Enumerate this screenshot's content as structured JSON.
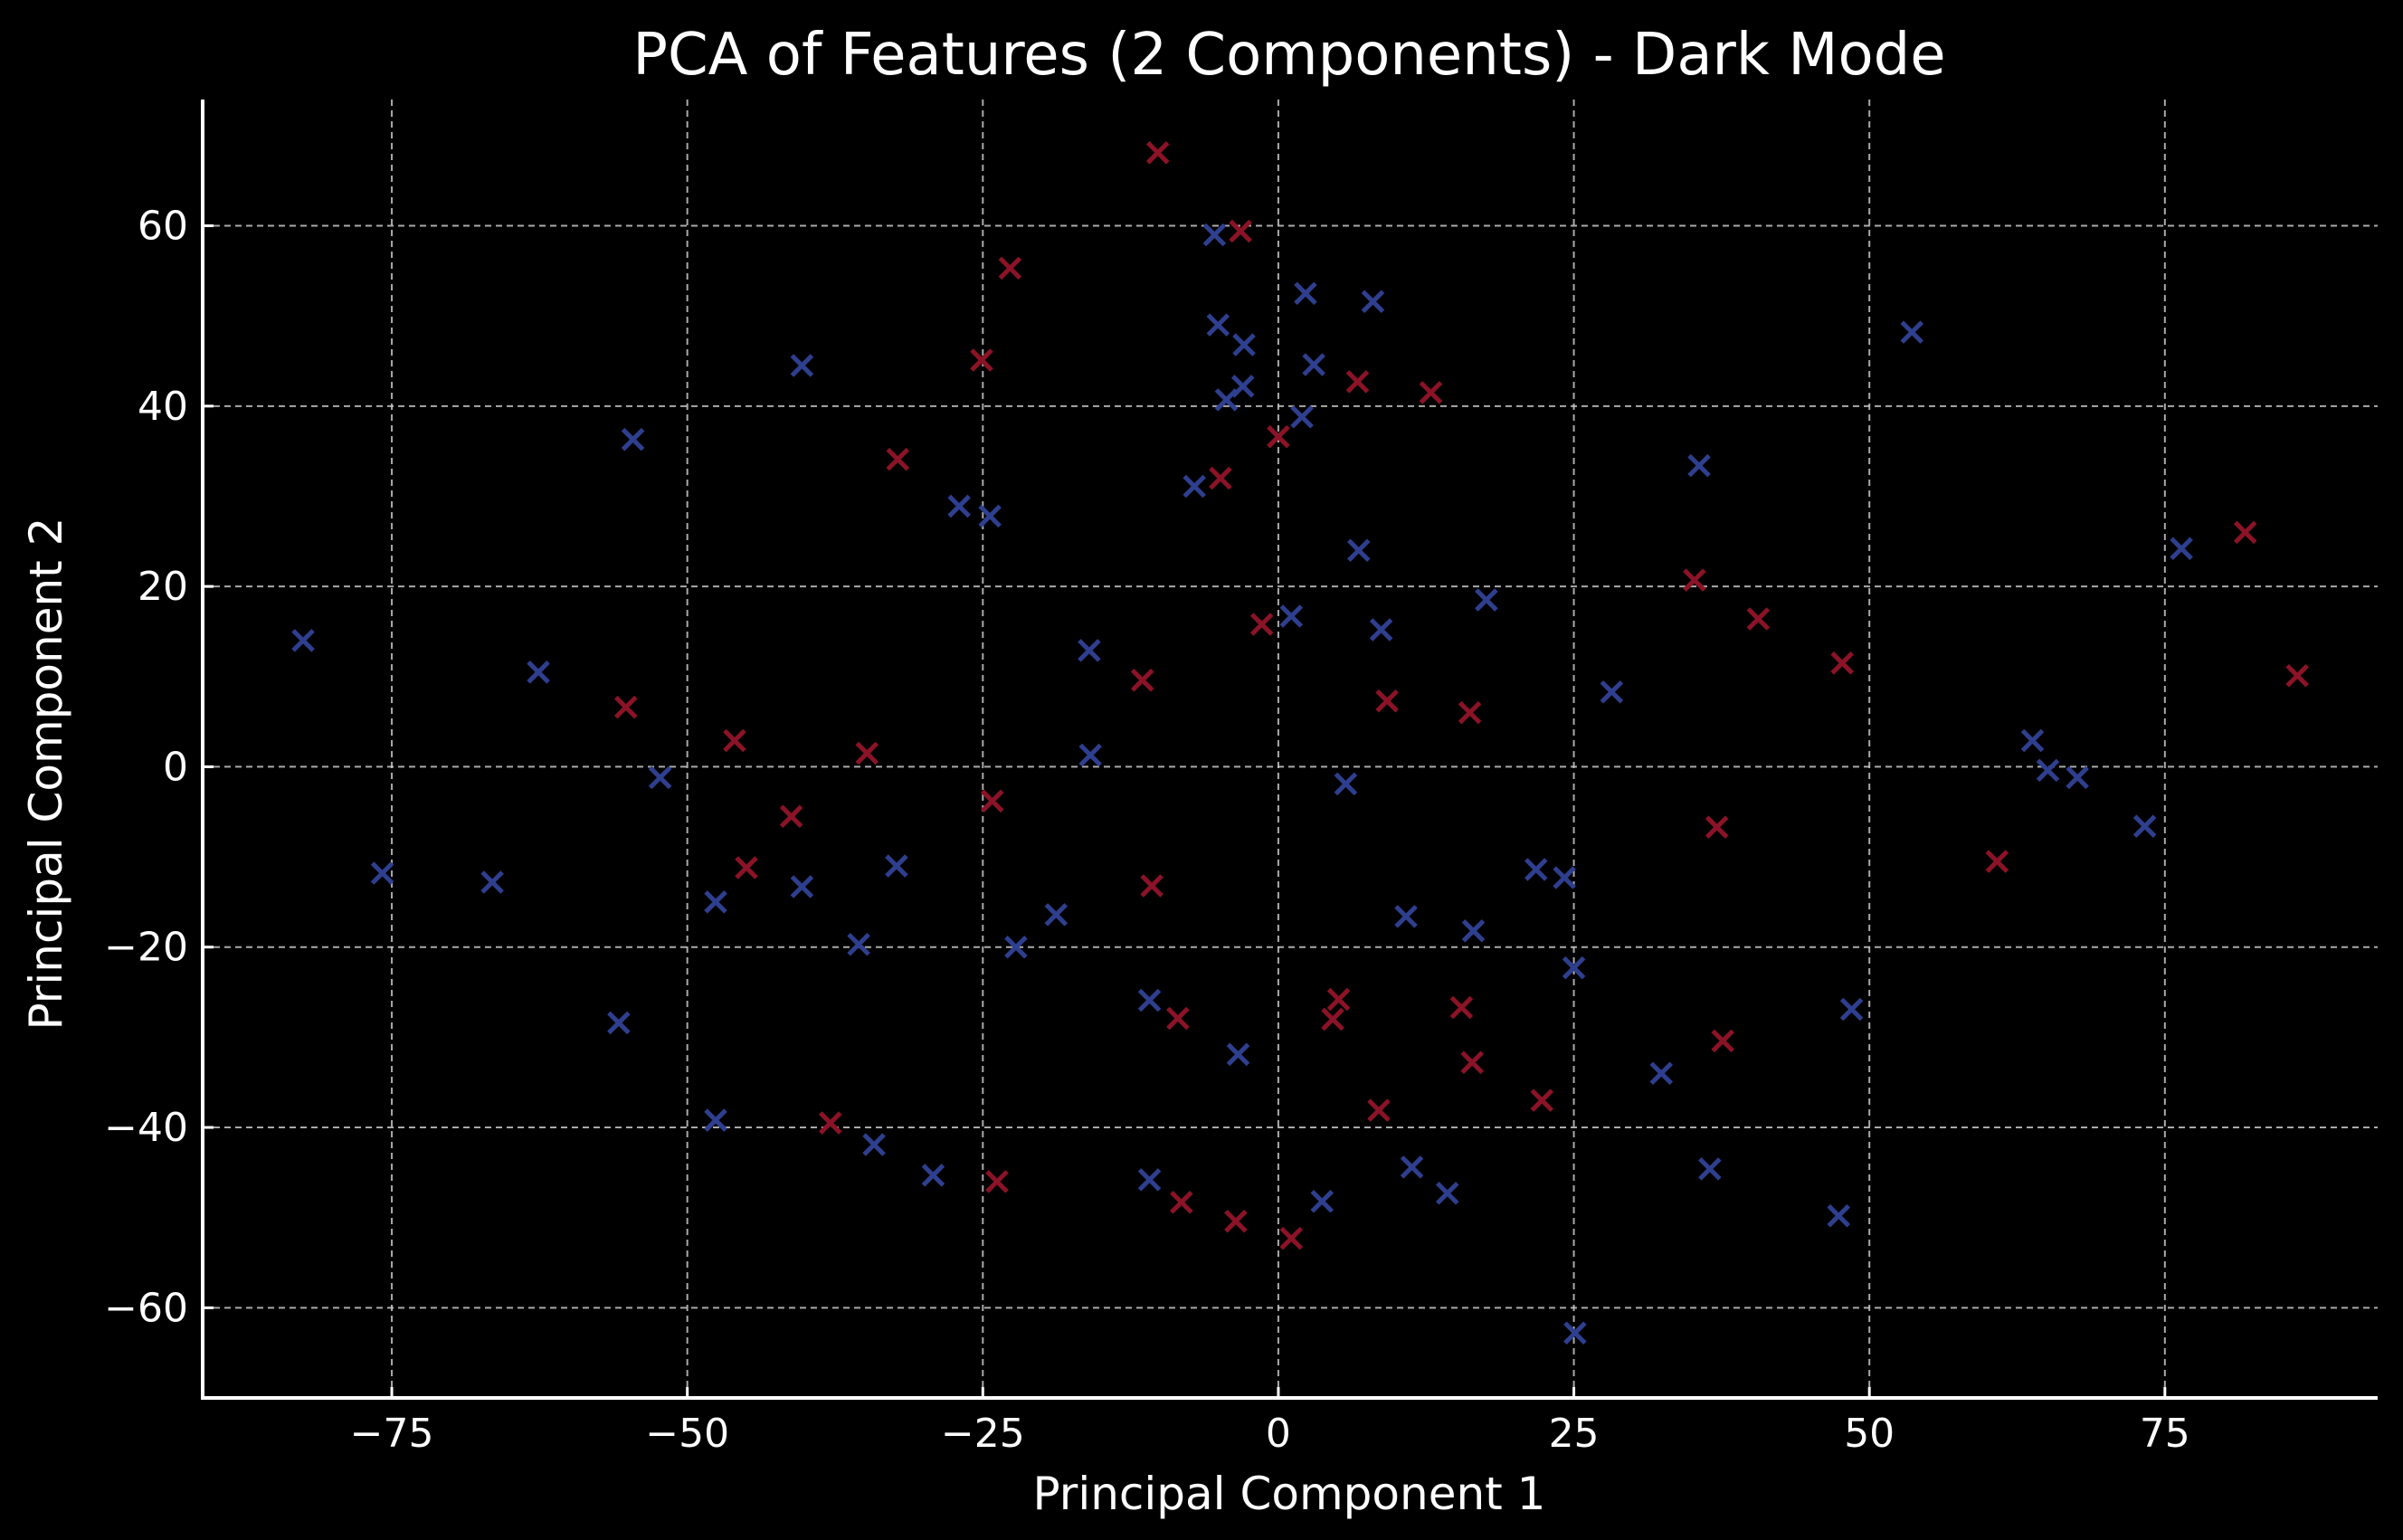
{
  "chart_data": {
    "type": "scatter",
    "title": "PCA of Features (2 Components) - Dark Mode",
    "xlabel": "Principal Component 1",
    "ylabel": "Principal Component 2",
    "xlim": [
      -91,
      93
    ],
    "ylim": [
      -70,
      74
    ],
    "xticks": [
      -75,
      -50,
      -25,
      0,
      25,
      50,
      75
    ],
    "yticks": [
      -60,
      -40,
      -20,
      0,
      20,
      40,
      60
    ],
    "xtick_labels": [
      "−75",
      "−50",
      "−25",
      "0",
      "25",
      "50",
      "75"
    ],
    "ytick_labels": [
      "−60",
      "−40",
      "−20",
      "0",
      "20",
      "40",
      "60"
    ],
    "grid": true,
    "marker": "x",
    "colors": {
      "background": "#000000",
      "foreground": "#ffffff",
      "blue": "#2f3f8f",
      "red": "#8c1327"
    },
    "series": [
      {
        "color": "#2f3f8f",
        "points": [
          [
            -82.5,
            14
          ],
          [
            -75.8,
            -11.8
          ],
          [
            -66.5,
            -12.8
          ],
          [
            -62.6,
            10.5
          ],
          [
            -54.6,
            36.3
          ],
          [
            -52.3,
            -1.2
          ],
          [
            -55.8,
            -28.4
          ],
          [
            -47.6,
            -15
          ],
          [
            -47.6,
            -39.2
          ],
          [
            -40.3,
            44.5
          ],
          [
            -40.3,
            -13.3
          ],
          [
            -35.5,
            -19.7
          ],
          [
            -32.3,
            -11
          ],
          [
            -34.2,
            -41.9
          ],
          [
            -29.2,
            -45.3
          ],
          [
            -27,
            28.9
          ],
          [
            -24.4,
            27.8
          ],
          [
            -22.2,
            -20
          ],
          [
            -18.8,
            -16.4
          ],
          [
            -16,
            12.9
          ],
          [
            -15.9,
            1.3
          ],
          [
            -10.9,
            -25.9
          ],
          [
            -10.9,
            -45.8
          ],
          [
            -7.1,
            31.1
          ],
          [
            -5.4,
            59
          ],
          [
            -5.1,
            49
          ],
          [
            -4.4,
            40.7
          ],
          [
            -2.9,
            46.8
          ],
          [
            -3,
            42.2
          ],
          [
            -3.4,
            -31.9
          ],
          [
            1.1,
            16.7
          ],
          [
            2,
            38.8
          ],
          [
            2.3,
            52.5
          ],
          [
            3,
            44.6
          ],
          [
            5.7,
            -1.9
          ],
          [
            3.7,
            -48.2
          ],
          [
            6.8,
            24
          ],
          [
            8,
            51.6
          ],
          [
            8.7,
            15.2
          ],
          [
            10.8,
            -16.6
          ],
          [
            11.3,
            -44.4
          ],
          [
            14.3,
            -47.3
          ],
          [
            16.5,
            -18.2
          ],
          [
            17.6,
            18.5
          ],
          [
            21.8,
            -11.4
          ],
          [
            24.2,
            -12.3
          ],
          [
            25,
            -22.3
          ],
          [
            25.1,
            -62.8
          ],
          [
            28.2,
            8.3
          ],
          [
            32.4,
            -34
          ],
          [
            35.6,
            33.4
          ],
          [
            36.5,
            -44.6
          ],
          [
            47.4,
            -49.8
          ],
          [
            48.5,
            -26.9
          ],
          [
            53.6,
            48.2
          ],
          [
            63.8,
            2.9
          ],
          [
            65.1,
            -0.4
          ],
          [
            67.6,
            -1.2
          ],
          [
            73.3,
            -6.6
          ],
          [
            76.4,
            24.2
          ]
        ]
      },
      {
        "color": "#8c1327",
        "points": [
          [
            -55.2,
            6.6
          ],
          [
            -46,
            2.9
          ],
          [
            -45,
            -11.2
          ],
          [
            -41.2,
            -5.5
          ],
          [
            -37.9,
            -39.5
          ],
          [
            -34.8,
            1.5
          ],
          [
            -32.2,
            34.1
          ],
          [
            -25.1,
            45.1
          ],
          [
            -24.2,
            -3.8
          ],
          [
            -23.8,
            -46
          ],
          [
            -22.7,
            55.3
          ],
          [
            -11.5,
            9.6
          ],
          [
            -10.7,
            -13.2
          ],
          [
            -10.2,
            68.1
          ],
          [
            -8.5,
            -27.9
          ],
          [
            -8.2,
            -48.3
          ],
          [
            -4.9,
            32
          ],
          [
            -3.6,
            -50.4
          ],
          [
            -3.2,
            59.4
          ],
          [
            -1.4,
            15.8
          ],
          [
            0,
            36.6
          ],
          [
            1.1,
            -52.3
          ],
          [
            4.6,
            -28
          ],
          [
            5.1,
            -25.8
          ],
          [
            6.7,
            42.7
          ],
          [
            8.5,
            -38.1
          ],
          [
            9.2,
            7.3
          ],
          [
            12.9,
            41.5
          ],
          [
            15.5,
            -26.7
          ],
          [
            16.2,
            6
          ],
          [
            16.4,
            -32.8
          ],
          [
            22.3,
            -37
          ],
          [
            35.2,
            20.7
          ],
          [
            37.1,
            -6.7
          ],
          [
            37.6,
            -30.4
          ],
          [
            40.6,
            16.4
          ],
          [
            47.7,
            11.5
          ],
          [
            60.8,
            -10.5
          ],
          [
            81.8,
            26
          ],
          [
            86.2,
            10.1
          ]
        ]
      }
    ]
  }
}
